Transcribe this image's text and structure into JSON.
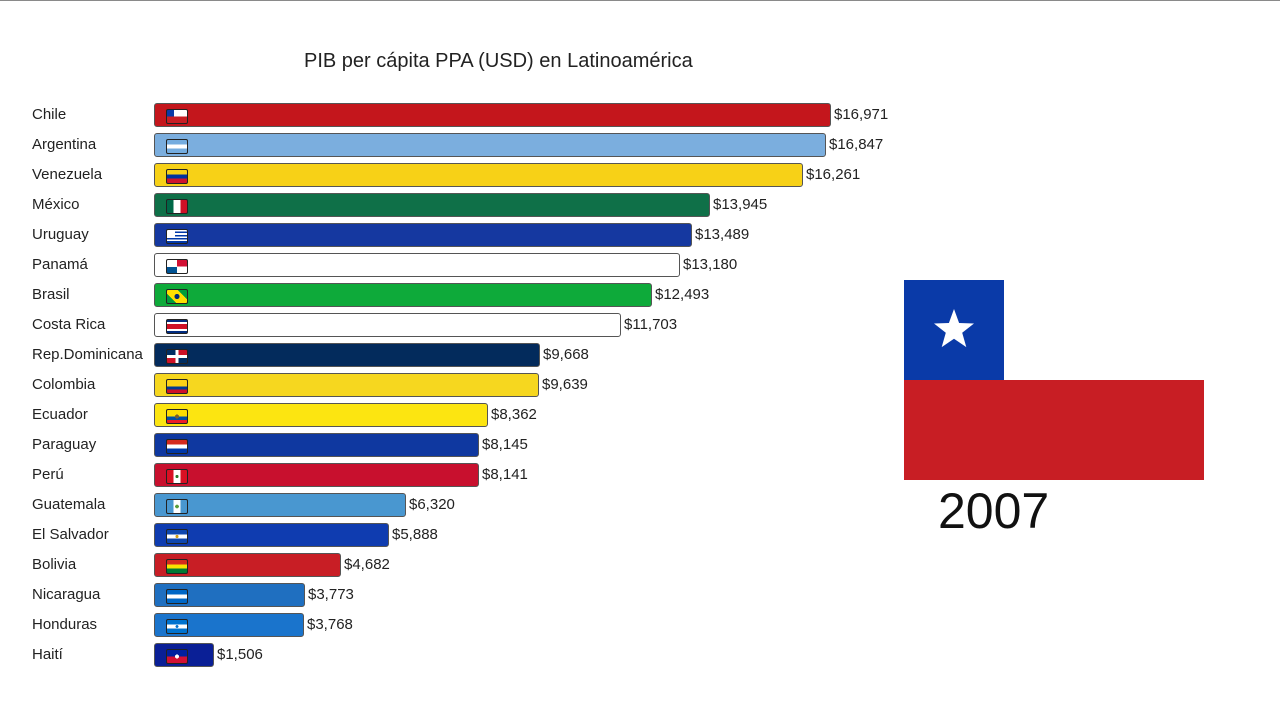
{
  "chart_data": {
    "type": "bar",
    "orientation": "horizontal",
    "title": "PIB per cápita PPA (USD) en Latinoamérica",
    "xlabel": "",
    "ylabel": "",
    "xlim": [
      0,
      16971
    ],
    "grid": false,
    "legend": "none",
    "categories": [
      "Chile",
      "Argentina",
      "Venezuela",
      "México",
      "Uruguay",
      "Panamá",
      "Brasil",
      "Costa Rica",
      "Rep.Dominicana",
      "Colombia",
      "Ecuador",
      "Paraguay",
      "Perú",
      "Guatemala",
      "El Salvador",
      "Bolivia",
      "Nicaragua",
      "Honduras",
      "Haití"
    ],
    "values": [
      16971,
      16847,
      16261,
      13945,
      13489,
      13180,
      12493,
      11703,
      9668,
      9639,
      8362,
      8145,
      8141,
      6320,
      5888,
      4682,
      3773,
      3768,
      1506
    ],
    "value_labels": [
      "$16,971",
      "$16,847",
      "$16,261",
      "$13,945",
      "$13,489",
      "$13,180",
      "$12,493",
      "$11,703",
      "$9,668",
      "$9,639",
      "$8,362",
      "$8,145",
      "$8,141",
      "$6,320",
      "$5,888",
      "$4,682",
      "$3,773",
      "$3,768",
      "$1,506"
    ],
    "colors": [
      "#c4161c",
      "#7baede",
      "#f7d117",
      "#0f7048",
      "#1538a0",
      "#ffffff",
      "#0eaa3a",
      "#ffffff",
      "#032b5c",
      "#f6d71f",
      "#fce511",
      "#0f38a0",
      "#c8102e",
      "#4997d0",
      "#0f3cb0",
      "#c81e25",
      "#1f6fc0",
      "#1a74cc",
      "#0a1f96"
    ],
    "flag_icons": [
      "chile-flag-icon",
      "argentina-flag-icon",
      "venezuela-flag-icon",
      "mexico-flag-icon",
      "uruguay-flag-icon",
      "panama-flag-icon",
      "brazil-flag-icon",
      "costa-rica-flag-icon",
      "dominican-republic-flag-icon",
      "colombia-flag-icon",
      "ecuador-flag-icon",
      "paraguay-flag-icon",
      "peru-flag-icon",
      "guatemala-flag-icon",
      "el-salvador-flag-icon",
      "bolivia-flag-icon",
      "nicaragua-flag-icon",
      "honduras-flag-icon",
      "haiti-flag-icon"
    ]
  },
  "year": "2007",
  "leader_flag": {
    "icon": "chile-flag-icon",
    "colors": {
      "blue": "#0a3aa8",
      "white": "#ffffff",
      "red": "#c81e24",
      "star": "#ffffff"
    }
  }
}
